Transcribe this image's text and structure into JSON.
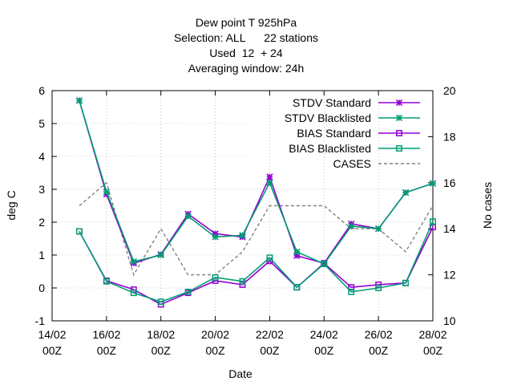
{
  "chart_data": {
    "type": "line",
    "title_lines": [
      "Dew point T 925hPa",
      "Selection: ALL      22 stations",
      "Used  12  + 24",
      "Averaging window: 24h"
    ],
    "xlabel": "Date",
    "ylabel": "deg C",
    "y2label": "No cases",
    "x_ticks": [
      {
        "x": "14/02",
        "label_top": "14/02",
        "label_bottom": "00Z"
      },
      {
        "x": "16/02",
        "label_top": "16/02",
        "label_bottom": "00Z"
      },
      {
        "x": "18/02",
        "label_top": "18/02",
        "label_bottom": "00Z"
      },
      {
        "x": "20/02",
        "label_top": "20/02",
        "label_bottom": "00Z"
      },
      {
        "x": "22/02",
        "label_top": "22/02",
        "label_bottom": "00Z"
      },
      {
        "x": "24/02",
        "label_top": "24/02",
        "label_bottom": "00Z"
      },
      {
        "x": "26/02",
        "label_top": "26/02",
        "label_bottom": "00Z"
      },
      {
        "x": "28/02",
        "label_top": "28/02",
        "label_bottom": "00Z"
      }
    ],
    "xlim": [
      "14/02 00Z",
      "28/02 00Z"
    ],
    "ylim": [
      -1,
      6
    ],
    "y_ticks": [
      "-1",
      "0",
      "1",
      "2",
      "3",
      "4",
      "5",
      "6"
    ],
    "y2lim": [
      10,
      20
    ],
    "y2_ticks": [
      "10",
      "12",
      "14",
      "16",
      "18",
      "20"
    ],
    "legend_position": "top-right",
    "x": [
      "15/02 00Z",
      "16/02 00Z",
      "17/02 00Z",
      "18/02 00Z",
      "19/02 00Z",
      "20/02 00Z",
      "21/02 00Z",
      "22/02 00Z",
      "23/02 00Z",
      "24/02 00Z",
      "25/02 00Z",
      "26/02 00Z",
      "27/02 00Z",
      "28/02 00Z"
    ],
    "series": [
      {
        "name": "STDV Standard",
        "axis": "left",
        "color": "#9400d3",
        "marker": "star",
        "values": [
          5.7,
          2.85,
          0.75,
          1.02,
          2.25,
          1.65,
          1.55,
          3.38,
          0.98,
          0.75,
          1.95,
          1.8,
          2.9,
          3.18
        ]
      },
      {
        "name": "STDV Blacklisted",
        "axis": "left",
        "color": "#009e73",
        "marker": "star",
        "values": [
          5.7,
          2.92,
          0.8,
          1.0,
          2.18,
          1.55,
          1.6,
          3.2,
          1.1,
          0.73,
          1.88,
          1.8,
          2.9,
          3.18
        ]
      },
      {
        "name": "BIAS Standard",
        "axis": "left",
        "color": "#9400d3",
        "marker": "square",
        "values": [
          1.72,
          0.22,
          -0.05,
          -0.5,
          -0.15,
          0.22,
          0.1,
          0.82,
          0.02,
          0.75,
          0.02,
          0.1,
          0.15,
          1.85
        ]
      },
      {
        "name": "BIAS Blacklisted",
        "axis": "left",
        "color": "#009e73",
        "marker": "square",
        "values": [
          1.72,
          0.2,
          -0.15,
          -0.42,
          -0.12,
          0.32,
          0.2,
          0.92,
          0.02,
          0.73,
          -0.12,
          0.0,
          0.15,
          2.02
        ]
      },
      {
        "name": "CASES",
        "axis": "right",
        "color": "#808080",
        "marker": "none",
        "dash": true,
        "values": [
          15.0,
          16.0,
          12.0,
          14.0,
          12.0,
          12.0,
          13.0,
          15.0,
          15.0,
          15.0,
          14.0,
          14.0,
          13.0,
          15.0
        ]
      }
    ]
  }
}
